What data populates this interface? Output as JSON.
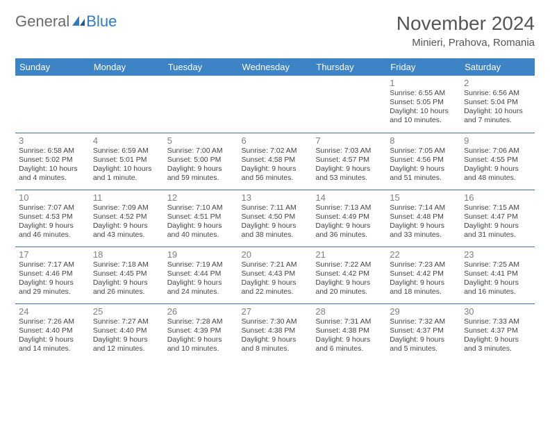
{
  "logo": {
    "text1": "General",
    "text2": "Blue"
  },
  "title": "November 2024",
  "location": "Minieri, Prahova, Romania",
  "colors": {
    "header_bg": "#3c84c6",
    "header_text": "#ffffff",
    "row_border": "#3c6fa3",
    "daynum": "#808080",
    "body_text": "#444444",
    "logo_gray": "#6a6a6a",
    "logo_blue": "#2f7ac0"
  },
  "day_headers": [
    "Sunday",
    "Monday",
    "Tuesday",
    "Wednesday",
    "Thursday",
    "Friday",
    "Saturday"
  ],
  "weeks": [
    [
      null,
      null,
      null,
      null,
      null,
      {
        "n": "1",
        "sunrise": "6:55 AM",
        "sunset": "5:05 PM",
        "daylight": "10 hours and 10 minutes."
      },
      {
        "n": "2",
        "sunrise": "6:56 AM",
        "sunset": "5:04 PM",
        "daylight": "10 hours and 7 minutes."
      }
    ],
    [
      {
        "n": "3",
        "sunrise": "6:58 AM",
        "sunset": "5:02 PM",
        "daylight": "10 hours and 4 minutes."
      },
      {
        "n": "4",
        "sunrise": "6:59 AM",
        "sunset": "5:01 PM",
        "daylight": "10 hours and 1 minute."
      },
      {
        "n": "5",
        "sunrise": "7:00 AM",
        "sunset": "5:00 PM",
        "daylight": "9 hours and 59 minutes."
      },
      {
        "n": "6",
        "sunrise": "7:02 AM",
        "sunset": "4:58 PM",
        "daylight": "9 hours and 56 minutes."
      },
      {
        "n": "7",
        "sunrise": "7:03 AM",
        "sunset": "4:57 PM",
        "daylight": "9 hours and 53 minutes."
      },
      {
        "n": "8",
        "sunrise": "7:05 AM",
        "sunset": "4:56 PM",
        "daylight": "9 hours and 51 minutes."
      },
      {
        "n": "9",
        "sunrise": "7:06 AM",
        "sunset": "4:55 PM",
        "daylight": "9 hours and 48 minutes."
      }
    ],
    [
      {
        "n": "10",
        "sunrise": "7:07 AM",
        "sunset": "4:53 PM",
        "daylight": "9 hours and 46 minutes."
      },
      {
        "n": "11",
        "sunrise": "7:09 AM",
        "sunset": "4:52 PM",
        "daylight": "9 hours and 43 minutes."
      },
      {
        "n": "12",
        "sunrise": "7:10 AM",
        "sunset": "4:51 PM",
        "daylight": "9 hours and 40 minutes."
      },
      {
        "n": "13",
        "sunrise": "7:11 AM",
        "sunset": "4:50 PM",
        "daylight": "9 hours and 38 minutes."
      },
      {
        "n": "14",
        "sunrise": "7:13 AM",
        "sunset": "4:49 PM",
        "daylight": "9 hours and 36 minutes."
      },
      {
        "n": "15",
        "sunrise": "7:14 AM",
        "sunset": "4:48 PM",
        "daylight": "9 hours and 33 minutes."
      },
      {
        "n": "16",
        "sunrise": "7:15 AM",
        "sunset": "4:47 PM",
        "daylight": "9 hours and 31 minutes."
      }
    ],
    [
      {
        "n": "17",
        "sunrise": "7:17 AM",
        "sunset": "4:46 PM",
        "daylight": "9 hours and 29 minutes."
      },
      {
        "n": "18",
        "sunrise": "7:18 AM",
        "sunset": "4:45 PM",
        "daylight": "9 hours and 26 minutes."
      },
      {
        "n": "19",
        "sunrise": "7:19 AM",
        "sunset": "4:44 PM",
        "daylight": "9 hours and 24 minutes."
      },
      {
        "n": "20",
        "sunrise": "7:21 AM",
        "sunset": "4:43 PM",
        "daylight": "9 hours and 22 minutes."
      },
      {
        "n": "21",
        "sunrise": "7:22 AM",
        "sunset": "4:42 PM",
        "daylight": "9 hours and 20 minutes."
      },
      {
        "n": "22",
        "sunrise": "7:23 AM",
        "sunset": "4:42 PM",
        "daylight": "9 hours and 18 minutes."
      },
      {
        "n": "23",
        "sunrise": "7:25 AM",
        "sunset": "4:41 PM",
        "daylight": "9 hours and 16 minutes."
      }
    ],
    [
      {
        "n": "24",
        "sunrise": "7:26 AM",
        "sunset": "4:40 PM",
        "daylight": "9 hours and 14 minutes."
      },
      {
        "n": "25",
        "sunrise": "7:27 AM",
        "sunset": "4:40 PM",
        "daylight": "9 hours and 12 minutes."
      },
      {
        "n": "26",
        "sunrise": "7:28 AM",
        "sunset": "4:39 PM",
        "daylight": "9 hours and 10 minutes."
      },
      {
        "n": "27",
        "sunrise": "7:30 AM",
        "sunset": "4:38 PM",
        "daylight": "9 hours and 8 minutes."
      },
      {
        "n": "28",
        "sunrise": "7:31 AM",
        "sunset": "4:38 PM",
        "daylight": "9 hours and 6 minutes."
      },
      {
        "n": "29",
        "sunrise": "7:32 AM",
        "sunset": "4:37 PM",
        "daylight": "9 hours and 5 minutes."
      },
      {
        "n": "30",
        "sunrise": "7:33 AM",
        "sunset": "4:37 PM",
        "daylight": "9 hours and 3 minutes."
      }
    ]
  ],
  "prefix": {
    "sunrise": "Sunrise: ",
    "sunset": "Sunset: ",
    "daylight": "Daylight: "
  }
}
